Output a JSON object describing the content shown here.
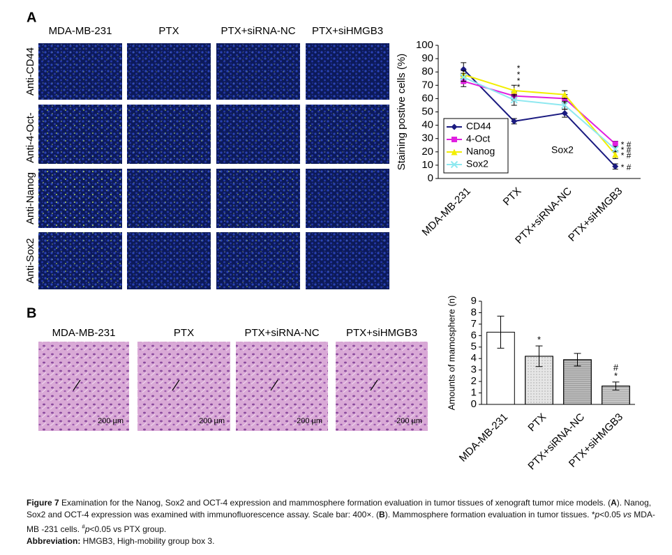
{
  "panel_a": {
    "label": "A",
    "columns": [
      "MDA-MB-231",
      "PTX",
      "PTX+siRNA-NC",
      "PTX+siHMGB3"
    ],
    "rows": [
      "Anti-CD44",
      "Anti-4-Oct-",
      "Anti-Nanog",
      "Anti-Sox2"
    ]
  },
  "panel_b": {
    "label": "B",
    "columns": [
      "MDA-MB-231",
      "PTX",
      "PTX+siRNA-NC",
      "PTX+siHMGB3"
    ],
    "scale_bar": "200 µm"
  },
  "chart_data": [
    {
      "type": "line",
      "ylabel": "Staining postive cells (%)",
      "categories": [
        "MDA-MB-231",
        "PTX",
        "PTX+siRNA-NC",
        "PTX+siHMGB3"
      ],
      "ylim": [
        0,
        100
      ],
      "yticks": [
        0,
        10,
        20,
        30,
        40,
        50,
        60,
        70,
        80,
        90,
        100
      ],
      "legend": "lower left",
      "annotation": "Sox2",
      "series": [
        {
          "name": "CD44",
          "color": "#1a1a80",
          "marker": "diamond",
          "values": [
            82,
            43,
            49,
            9
          ],
          "errors": [
            5,
            2,
            3,
            2
          ],
          "marks": [
            null,
            "*",
            null,
            "* #"
          ]
        },
        {
          "name": "4-Oct",
          "color": "#e020e0",
          "marker": "square",
          "values": [
            73,
            62,
            60,
            26
          ],
          "errors": [
            4,
            3,
            3,
            2
          ],
          "marks": [
            null,
            "*",
            null,
            "* #"
          ]
        },
        {
          "name": "Nanog",
          "color": "#f2ee00",
          "marker": "triangle",
          "values": [
            78,
            66,
            63,
            18
          ],
          "errors": [
            3,
            4,
            3,
            3
          ],
          "marks": [
            null,
            "*",
            null,
            "* #"
          ]
        },
        {
          "name": "Sox2",
          "color": "#8ee8f0",
          "marker": "x",
          "values": [
            76,
            59,
            55,
            22
          ],
          "errors": [
            3,
            4,
            3,
            2
          ],
          "marks": [
            null,
            "*",
            null,
            "* #"
          ]
        }
      ]
    },
    {
      "type": "bar",
      "ylabel": "Amounts of mamosphere (n)",
      "categories": [
        "MDA-MB-231",
        "PTX",
        "PTX+siRNA-NC",
        "PTX+siHMGB3"
      ],
      "values": [
        6.3,
        4.2,
        3.9,
        1.6
      ],
      "errors": [
        1.4,
        0.9,
        0.55,
        0.35
      ],
      "colors": [
        "#ffffff",
        "#e6e6e6",
        "#c4c4c4",
        "#d6d6d6"
      ],
      "marks": [
        null,
        [
          "*"
        ],
        null,
        [
          "#",
          "*"
        ]
      ],
      "ylim": [
        0,
        9
      ],
      "yticks": [
        0,
        1,
        2,
        3,
        4,
        5,
        6,
        7,
        8,
        9
      ]
    }
  ],
  "caption": {
    "parts": [
      "Figure 7",
      " Examination for the Nanog, Sox2 and OCT-4 expression and mammosphere formation evaluation in tumor tissues of xenograft tumor mice models. (",
      "A",
      "). Nanog, Sox2 and OCT-4 expression was examined with immunofluorescence assay. Scale bar: 400×. (",
      "B",
      "). Mammosphere formation evaluation in tumor tissues. *",
      "p",
      "<0.05 ",
      "vs",
      " MDA-MB -231 cells. ",
      "#",
      "p",
      "<0.05 vs PTX group."
    ],
    "abbreviation": [
      "Abbreviation:",
      " HMGB3, High-mobility group box 3."
    ]
  }
}
